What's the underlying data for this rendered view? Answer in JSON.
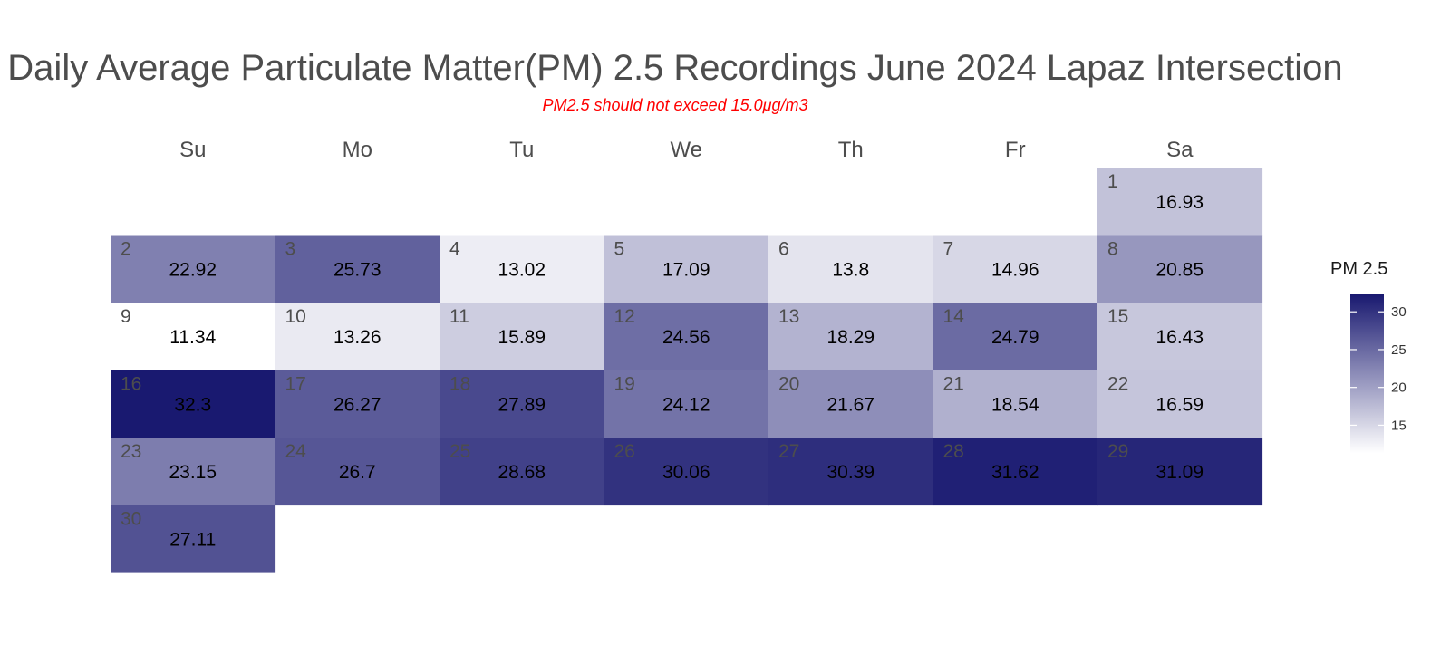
{
  "chart_data": {
    "type": "heatmap",
    "title": "Daily Average Particulate Matter(PM) 2.5 Recordings June 2024 Lapaz Intersection",
    "subtitle": "PM2.5 should not exceed 15.0μg/m3",
    "weekdays": [
      "Su",
      "Mo",
      "Tu",
      "We",
      "Th",
      "Fr",
      "Sa"
    ],
    "first_weekday_index": 6,
    "days": [
      1,
      2,
      3,
      4,
      5,
      6,
      7,
      8,
      9,
      10,
      11,
      12,
      13,
      14,
      15,
      16,
      17,
      18,
      19,
      20,
      21,
      22,
      23,
      24,
      25,
      26,
      27,
      28,
      29,
      30
    ],
    "values": [
      16.93,
      22.92,
      25.73,
      13.02,
      17.09,
      13.8,
      14.96,
      20.85,
      11.34,
      13.26,
      15.89,
      24.56,
      18.29,
      24.79,
      16.43,
      32.3,
      26.27,
      27.89,
      24.12,
      21.67,
      18.54,
      16.59,
      23.15,
      26.7,
      28.68,
      30.06,
      30.39,
      31.62,
      31.09,
      27.11
    ],
    "value_labels": [
      "16.93",
      "22.92",
      "25.73",
      "13.02",
      "17.09",
      "13.8",
      "14.96",
      "20.85",
      "11.34",
      "13.26",
      "15.89",
      "24.56",
      "18.29",
      "24.79",
      "16.43",
      "32.3",
      "26.27",
      "27.89",
      "24.12",
      "21.67",
      "18.54",
      "16.59",
      "23.15",
      "26.7",
      "28.68",
      "30.06",
      "30.39",
      "31.62",
      "31.09",
      "27.11"
    ],
    "color_low": "#ffffff",
    "color_high": "#191970",
    "value_range": [
      11.34,
      32.3
    ],
    "legend": {
      "title": "PM 2.5",
      "position": "right",
      "ticks": [
        15,
        20,
        25,
        30
      ],
      "tick_labels": [
        "15",
        "20",
        "25",
        "30"
      ]
    }
  }
}
